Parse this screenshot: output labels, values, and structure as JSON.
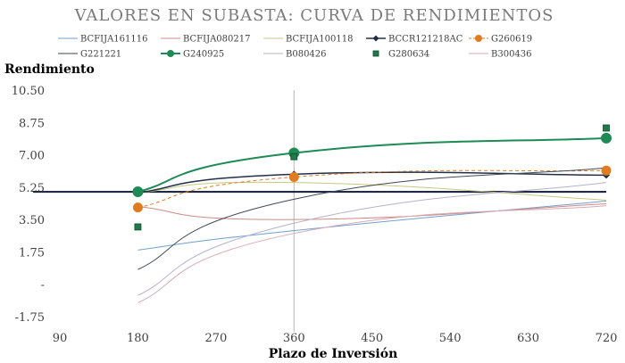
{
  "chart_data": {
    "type": "line",
    "title": "VALORES EN SUBASTA: CURVA DE RENDIMIENTOS",
    "xlabel": "Plazo de Inversión",
    "ylabel": "Rendimiento",
    "xlim": [
      90,
      720
    ],
    "ylim": [
      -1.75,
      10.5
    ],
    "x_ticks": [
      "90",
      "180",
      "270",
      "360",
      "450",
      "540",
      "630",
      "720"
    ],
    "y_ticks": [
      "10.50",
      "8.75",
      "7.00",
      "5.25",
      "3.50",
      "1.75",
      "-",
      "-1.75"
    ],
    "x": [
      180,
      360,
      720
    ],
    "vertical_line_x": 360,
    "reference_line": {
      "value": 5.0,
      "color": "#1f2a44"
    },
    "legend_position": "top",
    "series": [
      {
        "name": "BCFIJA161116",
        "color": "#6fa0d0",
        "values": [
          1.85,
          2.9,
          4.5
        ],
        "marker": "none",
        "dash": "solid",
        "width": 1
      },
      {
        "name": "BCFIJA080217",
        "color": "#d08a86",
        "values": [
          4.2,
          3.5,
          4.35
        ],
        "marker": "none",
        "dash": "solid",
        "width": 1
      },
      {
        "name": "BCFIJA100118",
        "color": "#c8c880",
        "values": [
          4.95,
          5.5,
          4.55
        ],
        "marker": "none",
        "dash": "solid",
        "width": 1
      },
      {
        "name": "BCCR121218AC",
        "color": "#22304a",
        "values": [
          4.95,
          5.95,
          5.9
        ],
        "marker": "diamond",
        "dash": "solid",
        "width": 1.5
      },
      {
        "name": "G260619",
        "color": "#e07b20",
        "values": [
          4.15,
          5.8,
          6.15
        ],
        "marker": "circle",
        "dash": "dashed",
        "width": 1
      },
      {
        "name": "G221221",
        "color": "#404a55",
        "values": [
          0.8,
          4.6,
          6.3
        ],
        "marker": "none",
        "dash": "solid",
        "width": 1
      },
      {
        "name": "G240925",
        "color": "#1e8a55",
        "values": [
          5.0,
          7.1,
          7.9
        ],
        "marker": "circle",
        "dash": "solid",
        "width": 2
      },
      {
        "name": "B080426",
        "color": "#b8b0d0",
        "values": [
          -0.6,
          3.3,
          5.5
        ],
        "marker": "none",
        "dash": "solid",
        "width": 1
      },
      {
        "name": "G280634",
        "color": "#1e7a4a",
        "values": [
          3.1,
          6.9,
          8.45
        ],
        "marker": "square",
        "dash": "none",
        "width": 1
      },
      {
        "name": "B300436",
        "color": "#d9aab5",
        "values": [
          -1.0,
          2.75,
          4.25
        ],
        "marker": "none",
        "dash": "solid",
        "width": 1
      }
    ]
  }
}
